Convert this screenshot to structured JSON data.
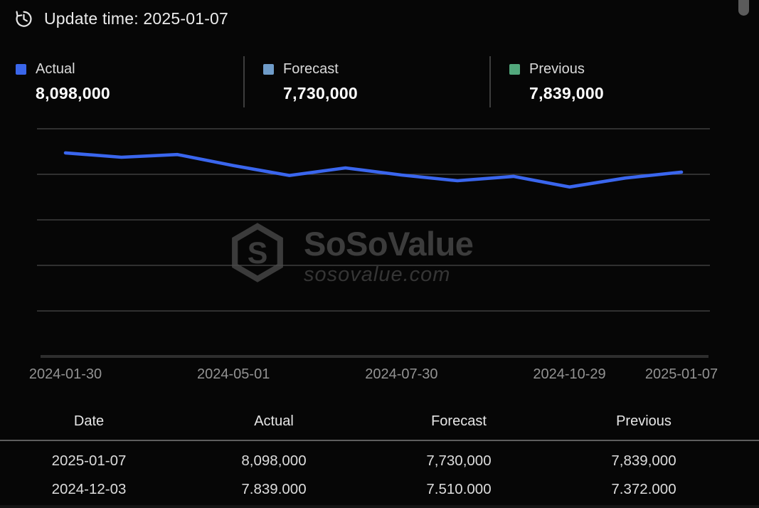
{
  "header": {
    "update_time": "Update time: 2025-01-07"
  },
  "legend": {
    "items": [
      {
        "label": "Actual",
        "value": "8,098,000",
        "color": "#3a66ea"
      },
      {
        "label": "Forecast",
        "value": "7,730,000",
        "color": "#6f9cc9"
      },
      {
        "label": "Previous",
        "value": "7,839,000",
        "color": "#52a87c"
      }
    ]
  },
  "chart_data": {
    "type": "line",
    "series": [
      {
        "name": "Actual",
        "color": "#3a66ee",
        "values": [
          8940000,
          8750000,
          8870000,
          8380000,
          7950000,
          8280000,
          7970000,
          7720000,
          7910000,
          7443000,
          7839000,
          8098000
        ]
      }
    ],
    "x_tick_labels": [
      "2024-01-30",
      "2024-05-01",
      "2024-07-30",
      "2024-10-29",
      "2025-01-07"
    ],
    "x_tick_point_indices": [
      0,
      3,
      6,
      9,
      11
    ],
    "ylim": [
      0,
      10000000
    ],
    "gridline_interval": 2000000,
    "grid": "horizontal-only",
    "legend_position": "top",
    "watermark": {
      "title": "SoSoValue",
      "subtitle": "sosovalue.com"
    }
  },
  "table": {
    "columns": [
      "Date",
      "Actual",
      "Forecast",
      "Previous"
    ],
    "rows": [
      [
        "2025-01-07",
        "8,098,000",
        "7,730,000",
        "7,839,000"
      ],
      [
        "2024-12-03",
        "7.839.000",
        "7.510.000",
        "7.372.000"
      ]
    ]
  },
  "colors": {
    "background": "#060606",
    "gridline": "#4a4a4a",
    "axis_baseline": "#2e2e2e",
    "divider": "#3d3d3d"
  }
}
